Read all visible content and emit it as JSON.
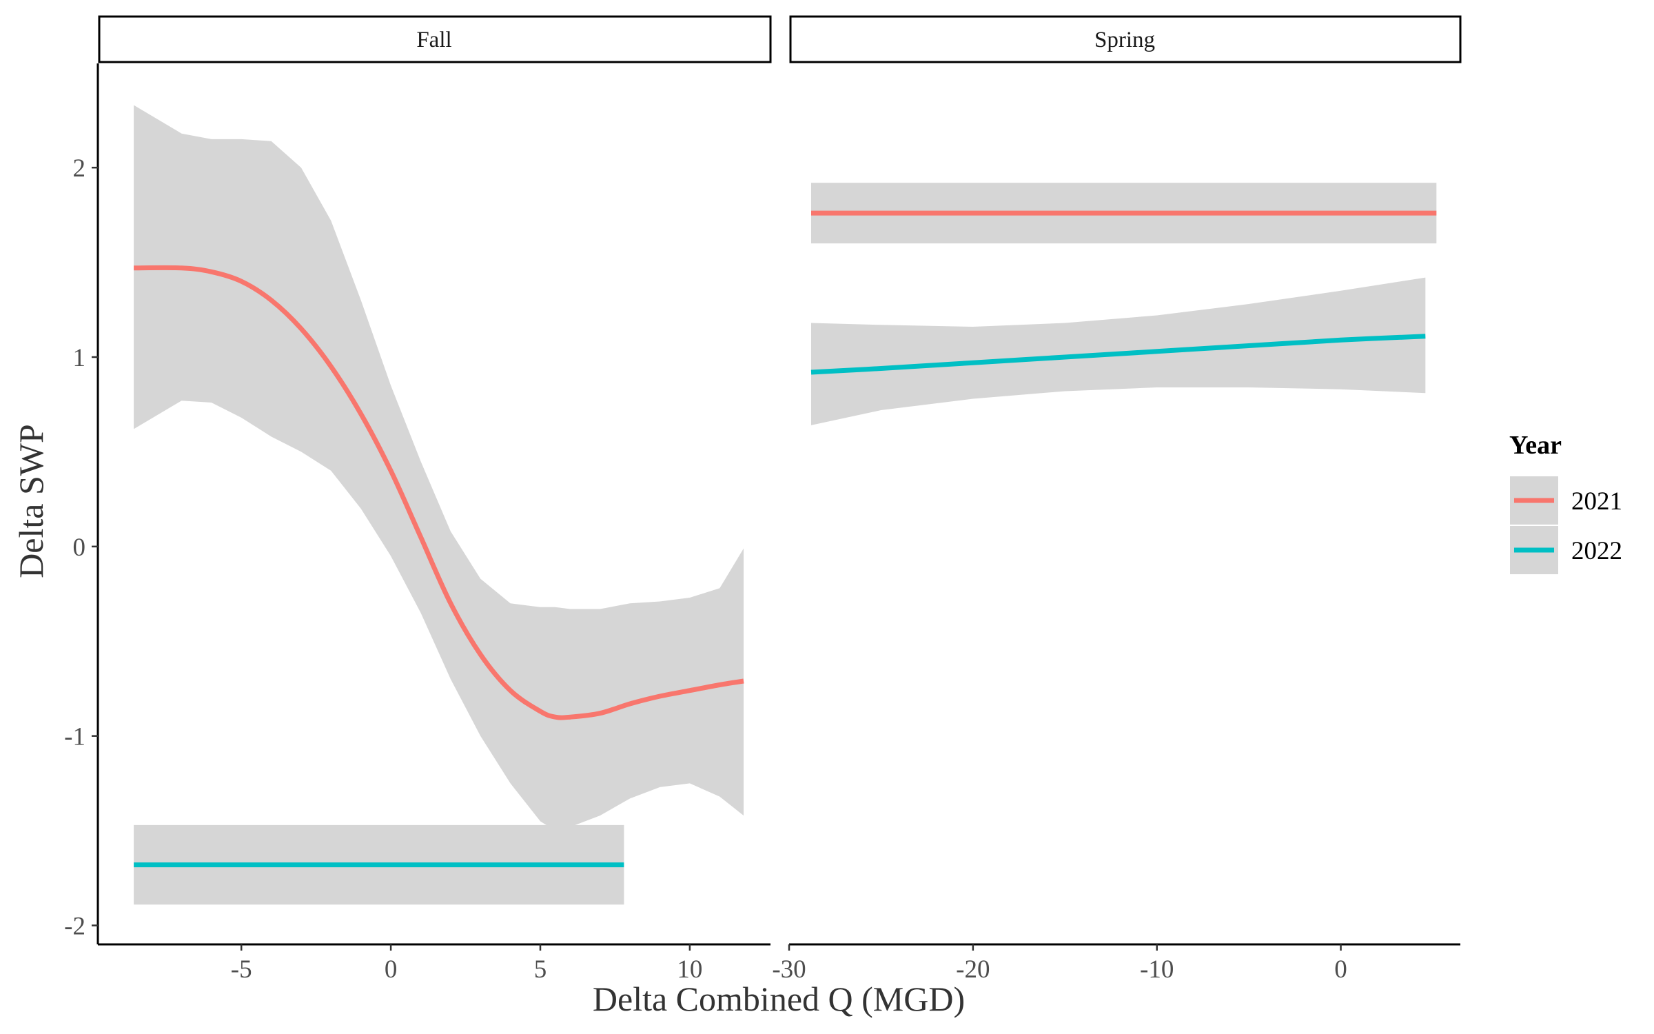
{
  "chart_data": {
    "type": "line",
    "facet_variable": "season",
    "ylabel": "Delta SWP",
    "xlabel": "Delta Combined Q (MGD)",
    "ylim": [
      -2.1,
      2.55
    ],
    "yticks": [
      -2,
      -1,
      0,
      1,
      2
    ],
    "legend": {
      "title": "Year",
      "position": "right",
      "entries": [
        {
          "label": "2021",
          "color": "#F8766D"
        },
        {
          "label": "2022",
          "color": "#00BFC4"
        }
      ]
    },
    "ribbon_color": "#d6d6d6",
    "grid": false,
    "panels": [
      {
        "strip": "Fall",
        "xlim": [
          -9.8,
          12.7
        ],
        "xticks": [
          -5,
          0,
          5,
          10
        ],
        "series": [
          {
            "name": "2021",
            "color": "#F8766D",
            "x": [
              -8.6,
              -7,
              -6,
              -5,
              -4,
              -3,
              -2,
              -1,
              0,
              1,
              2,
              3,
              4,
              5,
              5.5,
              6,
              7,
              8,
              9,
              10,
              11,
              11.8
            ],
            "y": [
              1.47,
              1.47,
              1.45,
              1.4,
              1.3,
              1.15,
              0.95,
              0.7,
              0.4,
              0.05,
              -0.3,
              -0.57,
              -0.76,
              -0.87,
              -0.9,
              -0.9,
              -0.88,
              -0.83,
              -0.79,
              -0.76,
              -0.73,
              -0.71
            ],
            "lower": [
              0.62,
              0.77,
              0.76,
              0.68,
              0.58,
              0.5,
              0.4,
              0.2,
              -0.05,
              -0.35,
              -0.7,
              -1.0,
              -1.25,
              -1.45,
              -1.5,
              -1.48,
              -1.42,
              -1.33,
              -1.27,
              -1.25,
              -1.32,
              -1.42
            ],
            "upper": [
              2.33,
              2.18,
              2.15,
              2.15,
              2.14,
              2.0,
              1.72,
              1.3,
              0.85,
              0.45,
              0.08,
              -0.17,
              -0.3,
              -0.32,
              -0.32,
              -0.33,
              -0.33,
              -0.3,
              -0.29,
              -0.27,
              -0.22,
              -0.01
            ]
          },
          {
            "name": "2022",
            "color": "#00BFC4",
            "x": [
              -8.6,
              7.8
            ],
            "y": [
              -1.68,
              -1.68
            ],
            "lower": [
              -1.89,
              -1.89
            ],
            "upper": [
              -1.47,
              -1.47
            ]
          }
        ]
      },
      {
        "strip": "Spring",
        "xlim": [
          -30,
          6.5
        ],
        "xticks": [
          -30,
          -20,
          -10,
          0
        ],
        "series": [
          {
            "name": "2021",
            "color": "#F8766D",
            "x": [
              -28.8,
              5.2
            ],
            "y": [
              1.76,
              1.76
            ],
            "lower": [
              1.6,
              1.6
            ],
            "upper": [
              1.92,
              1.92
            ]
          },
          {
            "name": "2022",
            "color": "#00BFC4",
            "x": [
              -28.8,
              -25,
              -20,
              -15,
              -10,
              -5,
              0,
              4.6
            ],
            "y": [
              0.92,
              0.94,
              0.97,
              1.0,
              1.03,
              1.06,
              1.09,
              1.11
            ],
            "lower": [
              0.64,
              0.72,
              0.78,
              0.82,
              0.84,
              0.84,
              0.83,
              0.81
            ],
            "upper": [
              1.18,
              1.17,
              1.16,
              1.18,
              1.22,
              1.28,
              1.35,
              1.42
            ]
          }
        ]
      }
    ]
  }
}
